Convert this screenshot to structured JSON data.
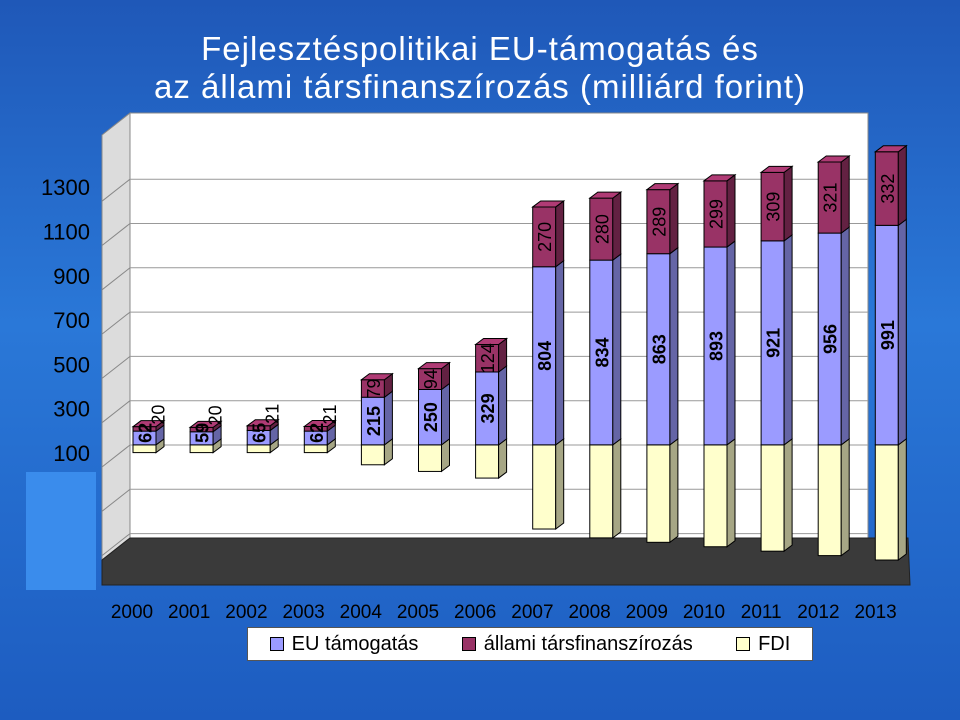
{
  "title_lines": [
    "Fejlesztéspolitikai EU-támogatás és",
    "az állami társfinanszírozás (milliárd forint)"
  ],
  "colors": {
    "eu": "#9b9bff",
    "allami": "#993366",
    "fdi": "#ffffcc",
    "wall": "#ffffff",
    "floor": "#3a3a3a",
    "background": "#2a78d8"
  },
  "chart_data": {
    "type": "bar",
    "stacked": true,
    "three_d": true,
    "title": "Fejlesztéspolitikai EU-támogatás és az állami társfinanszírozás (milliárd forint)",
    "categories": [
      "2000",
      "2001",
      "2002",
      "2003",
      "2004",
      "2005",
      "2006",
      "2007",
      "2008",
      "2009",
      "2010",
      "2011",
      "2012",
      "2013"
    ],
    "y_ticks": [
      100,
      300,
      500,
      700,
      900,
      1100,
      1300
    ],
    "grid": true,
    "legend_position": "bottom",
    "series": [
      {
        "name": "EU támogatás",
        "values": [
          62,
          59,
          65,
          62,
          215,
          250,
          329,
          804,
          834,
          863,
          893,
          921,
          956,
          991
        ]
      },
      {
        "name": "állami társfinanszírozás",
        "values": [
          20,
          20,
          21,
          21,
          79,
          94,
          124,
          270,
          280,
          289,
          299,
          309,
          321,
          332
        ]
      },
      {
        "name": "FDI",
        "values": [
          35,
          35,
          35,
          35,
          90,
          120,
          150,
          380,
          420,
          440,
          460,
          480,
          500,
          520
        ]
      }
    ]
  }
}
